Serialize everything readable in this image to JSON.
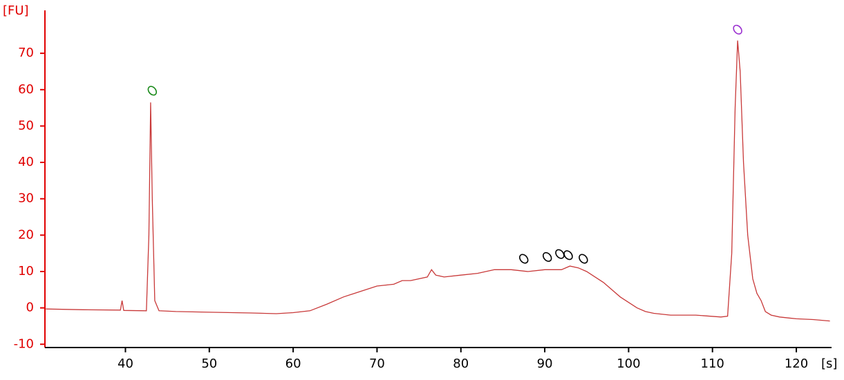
{
  "chart_data": {
    "type": "line",
    "y_label": "[FU]",
    "x_label": "[s]",
    "xlim": [
      30.4,
      124.2
    ],
    "ylim": [
      -10.9,
      81.8
    ],
    "xticks": [
      40,
      50,
      60,
      70,
      80,
      90,
      100,
      110,
      120
    ],
    "yticks": [
      -10,
      0,
      10,
      20,
      30,
      40,
      50,
      60,
      70
    ],
    "y_axis_color": "#e00000",
    "x_axis_color": "#000000",
    "x": [
      30.5,
      35,
      39.4,
      39.6,
      39.8,
      42.5,
      42.8,
      43,
      43.2,
      43.5,
      44,
      46,
      50,
      55,
      58,
      60,
      62,
      64,
      66,
      68,
      70,
      72,
      73,
      74,
      76,
      76.5,
      77,
      78,
      80,
      82,
      84,
      86,
      88,
      90,
      92,
      93,
      94,
      95,
      96,
      97,
      98,
      99,
      100,
      101,
      102,
      103,
      105,
      108,
      111,
      111.8,
      112.3,
      112.7,
      113,
      113.3,
      113.7,
      114.2,
      114.8,
      115.3,
      115.8,
      116.3,
      117,
      118,
      120,
      122,
      124
    ],
    "series": [
      {
        "color": "#c83838",
        "values": [
          -0.3,
          -0.5,
          -0.6,
          2,
          -0.7,
          -0.8,
          20,
          56.5,
          30,
          2,
          -0.8,
          -1,
          -1.2,
          -1.4,
          -1.6,
          -1.3,
          -0.8,
          1,
          3,
          4.5,
          6,
          6.5,
          7.5,
          7.5,
          8.5,
          10.5,
          9,
          8.5,
          9,
          9.5,
          10.5,
          10.5,
          10,
          10.5,
          10.5,
          11.5,
          11,
          10,
          8.5,
          7,
          5,
          3,
          1.5,
          0,
          -1,
          -1.5,
          -2,
          -2,
          -2.5,
          -2.3,
          15,
          55,
          73.5,
          65,
          40,
          20,
          8,
          4,
          2,
          -1,
          -2,
          -2.5,
          -3,
          -3.2,
          -3.6
        ]
      }
    ],
    "markers": [
      {
        "x": 43.2,
        "y": 59.7,
        "color": "#1a8a1a"
      },
      {
        "x": 113,
        "y": 76.5,
        "color": "#9b30d0"
      },
      {
        "x": 87.5,
        "y": 13.5,
        "color": "#000000"
      },
      {
        "x": 90.3,
        "y": 14,
        "color": "#000000"
      },
      {
        "x": 91.8,
        "y": 14.8,
        "color": "#000000"
      },
      {
        "x": 92.8,
        "y": 14.5,
        "color": "#000000"
      },
      {
        "x": 94.6,
        "y": 13.5,
        "color": "#000000"
      }
    ]
  }
}
